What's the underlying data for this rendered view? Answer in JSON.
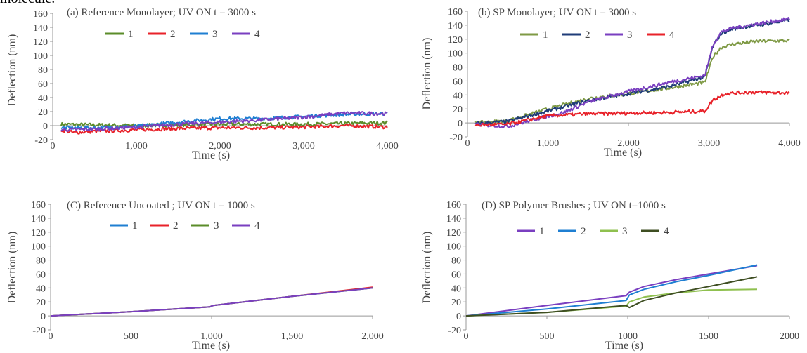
{
  "caption_fragment": "molecule.",
  "colors": {
    "green": "#5b8c2a",
    "red": "#e8222a",
    "blue": "#1f7fd2",
    "purple": "#7a3fc0",
    "navy": "#1f3c78",
    "lightgreen": "#8fc04f",
    "olive": "#7f9a45",
    "darkgreen": "#3e4e22",
    "axis": "#999999",
    "text": "#444444"
  },
  "chart_data": [
    {
      "type": "line",
      "title": "(a) Reference Monolayer;  UV ON t = 3000 s",
      "xlabel": "Time (s)",
      "ylabel": "Deflection (nm)",
      "xlim": [
        0,
        4000
      ],
      "ylim": [
        -20,
        160
      ],
      "xticks": [
        0,
        1000,
        2000,
        3000,
        4000
      ],
      "xtick_labels": [
        "0",
        "1,000",
        "2,000",
        "3,000",
        "4,000"
      ],
      "yticks": [
        -20,
        0,
        20,
        40,
        60,
        80,
        100,
        120,
        140,
        160
      ],
      "ytick_labels": [
        "-20",
        "0",
        "20",
        "40",
        "60",
        "80",
        "100",
        "120",
        "140",
        "160"
      ],
      "noisy": true,
      "legend_position": "top",
      "series": [
        {
          "name": "1",
          "color": "green",
          "x": [
            100,
            500,
            1000,
            1500,
            2000,
            2500,
            3000,
            3500,
            4000
          ],
          "values": [
            2,
            1,
            0,
            1,
            2,
            2,
            2,
            3,
            4
          ]
        },
        {
          "name": "2",
          "color": "red",
          "x": [
            100,
            250,
            500,
            1000,
            1500,
            2000,
            2500,
            3000,
            3500,
            4000
          ],
          "values": [
            -6,
            -10,
            -8,
            -6,
            -4,
            -3,
            -3,
            -2,
            0,
            -2
          ]
        },
        {
          "name": "3",
          "color": "blue",
          "x": [
            100,
            500,
            1000,
            1500,
            2000,
            2500,
            3000,
            3500,
            4000
          ],
          "values": [
            -3,
            -3,
            -1,
            5,
            10,
            10,
            13,
            16,
            17
          ]
        },
        {
          "name": "4",
          "color": "purple",
          "x": [
            100,
            500,
            1000,
            1500,
            2000,
            2500,
            3000,
            3500,
            4000
          ],
          "values": [
            -6,
            -5,
            -2,
            2,
            5,
            8,
            12,
            18,
            17
          ]
        }
      ]
    },
    {
      "type": "line",
      "title": "(b) SP Monolayer;  UV ON t = 3000  s",
      "xlabel": "Time (s)",
      "ylabel": "Deflection (nm)",
      "xlim": [
        0,
        4000
      ],
      "ylim": [
        -20,
        160
      ],
      "xticks": [
        0,
        1000,
        2000,
        3000,
        4000
      ],
      "xtick_labels": [
        "0",
        "1,000",
        "2,000",
        "3,000",
        "4,000"
      ],
      "yticks": [
        -20,
        0,
        20,
        40,
        60,
        80,
        100,
        120,
        140,
        160
      ],
      "ytick_labels": [
        "-20",
        "0",
        "20",
        "40",
        "60",
        "80",
        "100",
        "120",
        "140",
        "160"
      ],
      "noisy": true,
      "legend_position": "top",
      "series": [
        {
          "name": "1",
          "color": "olive",
          "x": [
            100,
            500,
            1000,
            1500,
            2000,
            2500,
            2950,
            3050,
            3150,
            3300,
            3600,
            4000
          ],
          "values": [
            0,
            3,
            20,
            35,
            42,
            50,
            58,
            95,
            108,
            113,
            117,
            118
          ]
        },
        {
          "name": "2",
          "color": "navy",
          "x": [
            100,
            500,
            1000,
            1500,
            2000,
            2500,
            2950,
            3050,
            3150,
            3300,
            3600,
            4000
          ],
          "values": [
            -1,
            2,
            17,
            32,
            42,
            52,
            66,
            110,
            128,
            135,
            140,
            147
          ]
        },
        {
          "name": "3",
          "color": "purple",
          "x": [
            100,
            500,
            900,
            1200,
            1500,
            2000,
            2500,
            2950,
            3050,
            3150,
            3300,
            3600,
            4000
          ],
          "values": [
            -2,
            -5,
            7,
            15,
            30,
            45,
            58,
            68,
            112,
            130,
            136,
            142,
            149
          ]
        },
        {
          "name": "4",
          "color": "red",
          "x": [
            100,
            500,
            1000,
            1500,
            2000,
            2500,
            2950,
            3050,
            3200,
            3500,
            4000
          ],
          "values": [
            -3,
            -2,
            10,
            13,
            14,
            15,
            17,
            33,
            42,
            44,
            43
          ]
        }
      ]
    },
    {
      "type": "line",
      "title": "(C) Reference Uncoated ; UV ON t = 1000  s",
      "xlabel": "Time (s)",
      "ylabel": "Deflection (nm)",
      "xlim": [
        0,
        2000
      ],
      "ylim": [
        -20,
        160
      ],
      "xticks": [
        0,
        500,
        1000,
        1500,
        2000
      ],
      "xtick_labels": [
        "0",
        "500",
        "1,000",
        "1,500",
        "2,000"
      ],
      "yticks": [
        -20,
        0,
        20,
        40,
        60,
        80,
        100,
        120,
        140,
        160
      ],
      "ytick_labels": [
        "-20",
        "0",
        "20",
        "40",
        "60",
        "80",
        "100",
        "120",
        "140",
        "160"
      ],
      "noisy": false,
      "legend_position": "top",
      "series": [
        {
          "name": "1",
          "color": "blue",
          "x": [
            0,
            500,
            990,
            1010,
            1500,
            2000
          ],
          "values": [
            0,
            6,
            13,
            15,
            28,
            40
          ]
        },
        {
          "name": "2",
          "color": "red",
          "x": [
            0,
            500,
            990,
            1010,
            1500,
            2000
          ],
          "values": [
            0,
            6,
            13,
            15,
            28,
            41
          ]
        },
        {
          "name": "3",
          "color": "green",
          "x": [
            0,
            500,
            990,
            1010,
            1500,
            2000
          ],
          "values": [
            0,
            6,
            13,
            15,
            28,
            40
          ]
        },
        {
          "name": "4",
          "color": "purple",
          "x": [
            0,
            500,
            990,
            1010,
            1500,
            2000
          ],
          "values": [
            0,
            6,
            13,
            15,
            28,
            40
          ]
        }
      ]
    },
    {
      "type": "line",
      "title": "(D) SP Polymer Brushes ; UV ON t=1000  s",
      "xlabel": "Time (s)",
      "ylabel": "Deflection (nm)",
      "xlim": [
        0,
        2000
      ],
      "ylim": [
        -20,
        160
      ],
      "xticks": [
        0,
        500,
        1000,
        1500,
        2000
      ],
      "xtick_labels": [
        "0",
        "500",
        "1000",
        "1500",
        "2000"
      ],
      "yticks": [
        -20,
        0,
        20,
        40,
        60,
        80,
        100,
        120,
        140,
        160
      ],
      "ytick_labels": [
        "-20",
        "0",
        "20",
        "40",
        "60",
        "80",
        "100",
        "120",
        "140",
        "160"
      ],
      "noisy": false,
      "legend_position": "top",
      "series": [
        {
          "name": "1",
          "color": "purple",
          "x": [
            0,
            500,
            990,
            1010,
            1100,
            1300,
            1500,
            1800
          ],
          "values": [
            0,
            15,
            29,
            34,
            42,
            52,
            60,
            72
          ]
        },
        {
          "name": "2",
          "color": "blue",
          "x": [
            0,
            500,
            990,
            1010,
            1100,
            1300,
            1500,
            1800
          ],
          "values": [
            0,
            10,
            22,
            30,
            38,
            49,
            58,
            73
          ]
        },
        {
          "name": "3",
          "color": "lightgreen",
          "x": [
            0,
            500,
            990,
            1010,
            1100,
            1300,
            1500,
            1800
          ],
          "values": [
            0,
            5,
            14,
            20,
            27,
            33,
            37,
            38
          ]
        },
        {
          "name": "4",
          "color": "darkgreen",
          "x": [
            0,
            500,
            990,
            1010,
            1100,
            1300,
            1500,
            1800
          ],
          "values": [
            0,
            5,
            15,
            12,
            22,
            33,
            42,
            56
          ]
        }
      ]
    }
  ]
}
